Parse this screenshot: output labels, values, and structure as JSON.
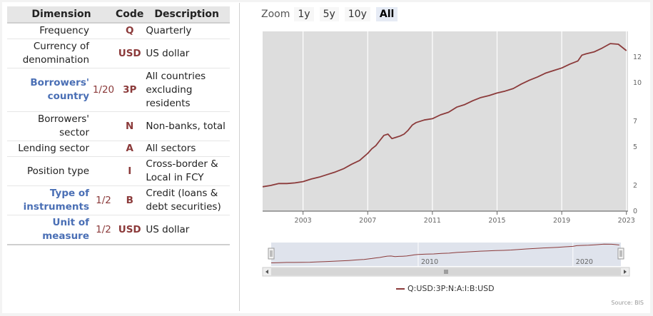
{
  "table": {
    "headers": {
      "dimension": "Dimension",
      "code": "Code",
      "description": "Description"
    },
    "rows": [
      {
        "dimension": "Frequency",
        "selector": "",
        "code": "Q",
        "description": "Quarterly",
        "highlight": false
      },
      {
        "dimension": "Currency of denomination",
        "selector": "",
        "code": "USD",
        "description": "US dollar",
        "highlight": false
      },
      {
        "dimension": "Borrowers' country",
        "selector": "1/20",
        "code": "3P",
        "description": "All countries excluding residents",
        "highlight": true
      },
      {
        "dimension": "Borrowers' sector",
        "selector": "",
        "code": "N",
        "description": "Non-banks, total",
        "highlight": false
      },
      {
        "dimension": "Lending sector",
        "selector": "",
        "code": "A",
        "description": "All sectors",
        "highlight": false
      },
      {
        "dimension": "Position type",
        "selector": "",
        "code": "I",
        "description": "Cross-border & Local in FCY",
        "highlight": false
      },
      {
        "dimension": "Type of instruments",
        "selector": "1/2",
        "code": "B",
        "description": "Credit (loans & debt securities)",
        "highlight": true
      },
      {
        "dimension": "Unit of measure",
        "selector": "1/2",
        "code": "USD",
        "description": "US dollar",
        "highlight": true
      }
    ]
  },
  "zoom": {
    "label": "Zoom",
    "buttons": [
      "1y",
      "5y",
      "10y",
      "All"
    ],
    "active": "All"
  },
  "chart_data": {
    "type": "area",
    "title": "",
    "xlabel": "",
    "ylabel": "",
    "x_ticks": [
      "2003",
      "2007",
      "2011",
      "2015",
      "2019",
      "2023"
    ],
    "y_ticks": [
      "0",
      "2",
      "5",
      "7",
      "10",
      "12"
    ],
    "xlim": [
      2000.5,
      2023.1
    ],
    "ylim": [
      0,
      14
    ],
    "grid": true,
    "plot_background": "#dddddd",
    "series": [
      {
        "name": "Q:USD:3P:N:A:I:B:USD",
        "color": "#8b3a3a",
        "x": [
          2000.5,
          2001.0,
          2001.5,
          2002.0,
          2002.5,
          2003.0,
          2003.5,
          2004.0,
          2004.5,
          2005.0,
          2005.5,
          2006.0,
          2006.5,
          2007.0,
          2007.25,
          2007.5,
          2007.75,
          2008.0,
          2008.25,
          2008.5,
          2008.75,
          2009.0,
          2009.25,
          2009.5,
          2009.75,
          2010.0,
          2010.5,
          2011.0,
          2011.5,
          2012.0,
          2012.5,
          2013.0,
          2013.5,
          2014.0,
          2014.5,
          2015.0,
          2015.5,
          2016.0,
          2016.5,
          2017.0,
          2017.5,
          2018.0,
          2018.5,
          2019.0,
          2019.5,
          2020.0,
          2020.25,
          2020.5,
          2021.0,
          2021.5,
          2022.0,
          2022.5,
          2022.75,
          2023.0
        ],
        "y": [
          1.9,
          2.0,
          2.15,
          2.15,
          2.2,
          2.3,
          2.5,
          2.65,
          2.85,
          3.05,
          3.3,
          3.65,
          3.95,
          4.5,
          4.85,
          5.1,
          5.5,
          5.9,
          6.0,
          5.65,
          5.75,
          5.85,
          6.0,
          6.3,
          6.7,
          6.9,
          7.1,
          7.2,
          7.5,
          7.7,
          8.1,
          8.3,
          8.6,
          8.85,
          9.0,
          9.2,
          9.35,
          9.55,
          9.9,
          10.2,
          10.45,
          10.75,
          10.95,
          11.15,
          11.45,
          11.7,
          12.15,
          12.25,
          12.4,
          12.7,
          13.05,
          13.0,
          12.75,
          12.5
        ]
      }
    ],
    "legend_position": "bottom",
    "navigator": {
      "x_ticks": [
        "2010",
        "2020"
      ]
    },
    "source": "Source: BIS"
  }
}
